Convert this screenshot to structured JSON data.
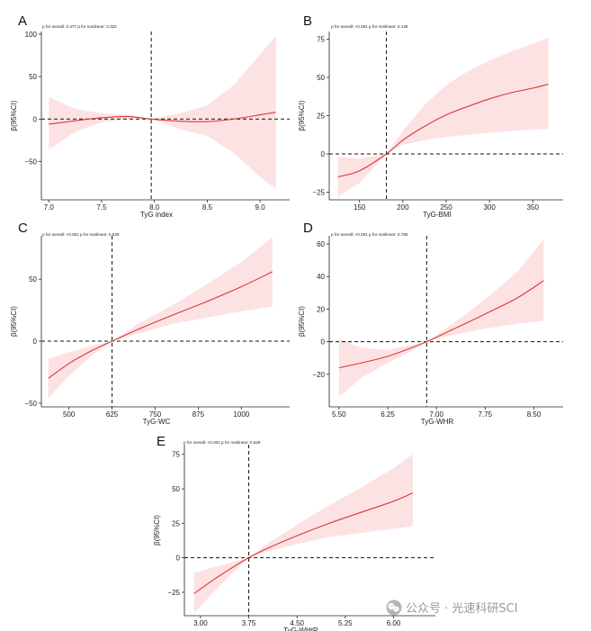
{
  "colors": {
    "curve": "#d9383a",
    "band": "#fde2e3",
    "reference_line": "#111111",
    "axis": "#222222"
  },
  "watermark": {
    "icon": "wechat-icon",
    "text": "公众号 · 光速科研SCI"
  },
  "chart_data": [
    {
      "type": "line",
      "panel": "A",
      "ptext": "p for overall: 0.477 p for nonlinear: 0.322",
      "xlabel": "TyG index",
      "ylabel": "β(95%CI)",
      "xlim": [
        6.93,
        9.28
      ],
      "ylim": [
        -95,
        103
      ],
      "xticks": [
        7.0,
        7.5,
        8.0,
        8.5,
        9.0
      ],
      "xtick_labels": [
        "7.0",
        "7.5",
        "8.0",
        "8.5",
        "9.0"
      ],
      "yticks": [
        -50,
        0,
        50,
        100
      ],
      "ytick_labels": [
        "−50",
        "0",
        "50",
        "100"
      ],
      "ref_x": 7.97,
      "ref_y": 0,
      "series": [
        {
          "x": [
            7.0,
            7.25,
            7.5,
            7.75,
            7.97,
            8.25,
            8.5,
            8.75,
            9.0,
            9.15
          ],
          "y": [
            -6,
            -2,
            1.5,
            3,
            0,
            -2.5,
            -3,
            0,
            5,
            8
          ],
          "lower": [
            -36,
            -15,
            -4,
            0,
            0,
            -12,
            -20,
            -40,
            -68,
            -82
          ],
          "upper": [
            26,
            12,
            7,
            5,
            0,
            7,
            16,
            40,
            76,
            98
          ]
        }
      ]
    },
    {
      "type": "line",
      "panel": "B",
      "ptext": "p for overall: <0.001 p for nonlinear: 0.128",
      "xlabel": "TyG-BMI",
      "ylabel": "β(95%CI)",
      "xlim": [
        115,
        385
      ],
      "ylim": [
        -30,
        80
      ],
      "xticks": [
        150,
        200,
        250,
        300,
        350
      ],
      "xtick_labels": [
        "150",
        "200",
        "250",
        "300",
        "350"
      ],
      "yticks": [
        -25,
        0,
        25,
        50,
        75
      ],
      "ytick_labels": [
        "−25",
        "0",
        "25",
        "50",
        "75"
      ],
      "ref_x": 181,
      "ref_y": 0,
      "series": [
        {
          "x": [
            125,
            150,
            181,
            200,
            225,
            250,
            275,
            300,
            325,
            350,
            368
          ],
          "y": [
            -15,
            -11,
            0,
            9,
            18,
            25.5,
            31,
            36,
            40,
            43,
            45.5
          ],
          "lower": [
            -28,
            -19,
            0,
            6,
            9,
            11,
            12.5,
            14,
            15,
            16,
            16.5
          ],
          "upper": [
            -2,
            -3,
            0,
            15,
            32,
            45,
            54,
            61,
            67,
            72,
            76
          ]
        }
      ]
    },
    {
      "type": "line",
      "panel": "C",
      "ptext": "p for overall: <0.001 p for nonlinear: 0.529",
      "xlabel": "TyG-WC",
      "ylabel": "β(95%CI)",
      "xlim": [
        420,
        1140
      ],
      "ylim": [
        -53,
        85
      ],
      "xticks": [
        500,
        625,
        750,
        875,
        1000
      ],
      "xtick_labels": [
        "500",
        "625",
        "750",
        "875",
        "1000"
      ],
      "yticks": [
        -50,
        0,
        50
      ],
      "ytick_labels": [
        "−50",
        "0",
        "50"
      ],
      "ref_x": 625,
      "ref_y": 0,
      "series": [
        {
          "x": [
            440,
            500,
            560,
            625,
            700,
            800,
            900,
            1000,
            1090
          ],
          "y": [
            -30,
            -18,
            -8.5,
            0,
            9.5,
            21,
            32,
            44,
            56
          ],
          "lower": [
            -46,
            -28,
            -13,
            0,
            6,
            14,
            19,
            24,
            28
          ],
          "upper": [
            -14,
            -9,
            -4,
            0,
            14,
            29,
            46,
            64,
            84
          ]
        }
      ]
    },
    {
      "type": "line",
      "panel": "D",
      "ptext": "p for overall: <0.001 p for nonlinear: 0.785",
      "xlabel": "TyG-WHR",
      "ylabel": "β(95%CI)",
      "xlim": [
        5.35,
        8.95
      ],
      "ylim": [
        -40,
        65
      ],
      "xticks": [
        5.5,
        6.25,
        7.0,
        7.75,
        8.5
      ],
      "xtick_labels": [
        "5.50",
        "6.25",
        "7.00",
        "7.75",
        "8.50"
      ],
      "yticks": [
        -20,
        0,
        20,
        40,
        60
      ],
      "ytick_labels": [
        "−20",
        "0",
        "20",
        "40",
        "60"
      ],
      "ref_x": 6.85,
      "ref_y": 0,
      "series": [
        {
          "x": [
            5.5,
            5.85,
            6.25,
            6.6,
            6.85,
            7.25,
            7.75,
            8.25,
            8.65
          ],
          "y": [
            -16,
            -13,
            -9,
            -4,
            0,
            7.5,
            17,
            27,
            37.5
          ],
          "lower": [
            -34,
            -22,
            -13,
            -6,
            0,
            4,
            8,
            11,
            13
          ],
          "upper": [
            2,
            -4,
            -5,
            -2,
            0,
            11,
            26,
            43,
            63
          ]
        }
      ]
    },
    {
      "type": "line",
      "panel": "E",
      "ptext": "p for overall: <0.001 p for nonlinear: 0.529",
      "xlabel": "TyG-WHtR",
      "ylabel": "β(95%CI)",
      "xlim": [
        2.75,
        6.65
      ],
      "ylim": [
        -42,
        82
      ],
      "xticks": [
        3.0,
        3.75,
        4.5,
        5.25,
        6.0
      ],
      "xtick_labels": [
        "3.00",
        "3.75",
        "4.50",
        "5.25",
        "6.00"
      ],
      "yticks": [
        -25,
        0,
        25,
        50,
        75
      ],
      "ytick_labels": [
        "−25",
        "0",
        "25",
        "50",
        "75"
      ],
      "ref_x": 3.75,
      "ref_y": 0,
      "series": [
        {
          "x": [
            2.9,
            3.2,
            3.5,
            3.75,
            4.0,
            4.5,
            5.0,
            5.5,
            6.0,
            6.3
          ],
          "y": [
            -26,
            -16,
            -7,
            0,
            6,
            16,
            25,
            33,
            41,
            47
          ],
          "lower": [
            -40,
            -25,
            -11,
            0,
            4,
            10,
            15,
            18,
            21,
            23
          ],
          "upper": [
            -11,
            -7,
            -3,
            0,
            9,
            24,
            38,
            51,
            65,
            75
          ]
        }
      ]
    }
  ]
}
